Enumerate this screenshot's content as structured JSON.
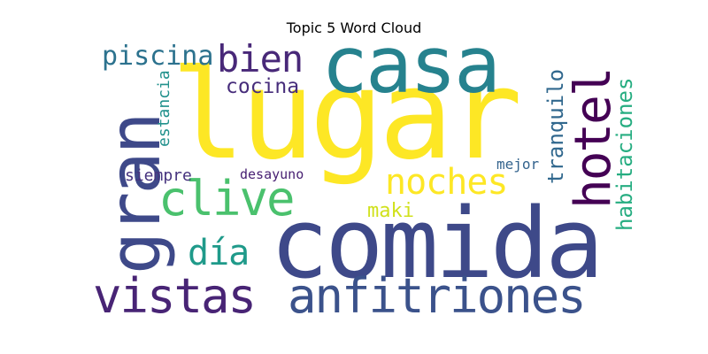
{
  "title": "Topic 5 Word Cloud",
  "palette": {
    "yellow": "#fde725",
    "green": "#5ec962",
    "light_green": "#a0da39",
    "teal": "#21918c",
    "blue_teal": "#2a788e",
    "blue": "#3b528b",
    "indigo": "#414487",
    "purple": "#440154"
  },
  "words": [
    {
      "key": "lugar",
      "text": "lugar",
      "color": "#fde725"
    },
    {
      "key": "comida",
      "text": "comida",
      "color": "#3e4989"
    },
    {
      "key": "casa",
      "text": "casa",
      "color": "#26828e"
    },
    {
      "key": "gran",
      "text": "gran",
      "color": "#3e4989"
    },
    {
      "key": "anfitriones",
      "text": "anfitriones",
      "color": "#3b528b"
    },
    {
      "key": "vistas",
      "text": "vistas",
      "color": "#482475"
    },
    {
      "key": "hotel",
      "text": "hotel",
      "color": "#440154"
    },
    {
      "key": "clive",
      "text": "clive",
      "color": "#4ac16d"
    },
    {
      "key": "noches",
      "text": "noches",
      "color": "#fde725"
    },
    {
      "key": "bien",
      "text": "bien",
      "color": "#482878"
    },
    {
      "key": "piscina",
      "text": "piscina",
      "color": "#2c728e"
    },
    {
      "key": "dia",
      "text": "día",
      "color": "#1f9a8a"
    },
    {
      "key": "cocina",
      "text": "cocina",
      "color": "#472d7b"
    },
    {
      "key": "habitaciones",
      "text": "habitaciones",
      "color": "#26ad81"
    },
    {
      "key": "tranquilo",
      "text": "tranquilo",
      "color": "#31688e"
    },
    {
      "key": "estancia",
      "text": "estancia",
      "color": "#21918c"
    },
    {
      "key": "maki",
      "text": "maki",
      "color": "#d0e11c"
    },
    {
      "key": "siempre",
      "text": "siempre",
      "color": "#46337e"
    },
    {
      "key": "desayuno",
      "text": "desayuno",
      "color": "#482173"
    },
    {
      "key": "mejor",
      "text": "mejor",
      "color": "#33638d"
    }
  ]
}
